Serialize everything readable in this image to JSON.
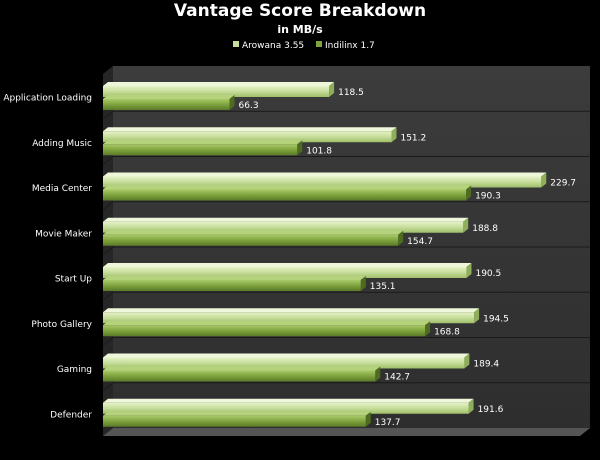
{
  "chart_data": {
    "type": "bar",
    "orientation": "horizontal",
    "title": "Vantage Score Breakdown",
    "subtitle": "in MB/s",
    "categories": [
      "Application Loading",
      "Adding Music",
      "Media Center",
      "Movie Maker",
      "Start Up",
      "Photo Gallery",
      "Gaming",
      "Defender"
    ],
    "series": [
      {
        "name": "Arowana 3.55",
        "color": "#c6dd9a",
        "values": [
          118.5,
          151.2,
          229.7,
          188.8,
          190.5,
          194.5,
          189.4,
          191.6
        ]
      },
      {
        "name": "Indilinx 1.7",
        "color": "#7ea33d",
        "values": [
          66.3,
          101.8,
          190.3,
          154.7,
          135.1,
          168.8,
          142.7,
          137.7
        ]
      }
    ],
    "xlim": [
      0,
      250
    ],
    "grid": true,
    "legend_position": "top-center"
  },
  "colors": {
    "background": "#000000",
    "plot_wall": "#3a3a3a",
    "text": "#ffffff",
    "gridline": "#1a1a1a"
  }
}
